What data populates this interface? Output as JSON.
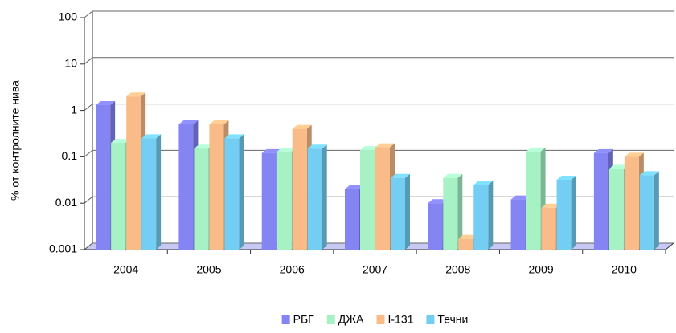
{
  "chart_data": {
    "type": "bar",
    "y_label": "% от контролните нива",
    "log_scale": true,
    "grid": true,
    "categories": [
      "2004",
      "2005",
      "2006",
      "2007",
      "2008",
      "2009",
      "2010"
    ],
    "series": [
      {
        "name": "РБГ",
        "color": "#8484f2",
        "values": [
          1.3,
          0.5,
          0.12,
          0.02,
          0.01,
          0.012,
          0.12
        ]
      },
      {
        "name": "ДЖА",
        "color": "#a6f2c4",
        "values": [
          0.2,
          0.15,
          0.13,
          0.14,
          0.035,
          0.13,
          0.055
        ]
      },
      {
        "name": "I-131",
        "color": "#f9bc88",
        "values": [
          2,
          0.5,
          0.4,
          0.16,
          0.0017,
          0.008,
          0.1
        ]
      },
      {
        "name": "Течни",
        "color": "#74cdf3",
        "values": [
          0.25,
          0.25,
          0.15,
          0.035,
          0.025,
          0.032,
          0.04
        ]
      }
    ],
    "ylim": [
      0.001,
      100
    ],
    "yticks": [
      0.001,
      0.01,
      0.1,
      1,
      10,
      100
    ],
    "legend": "bottom"
  }
}
